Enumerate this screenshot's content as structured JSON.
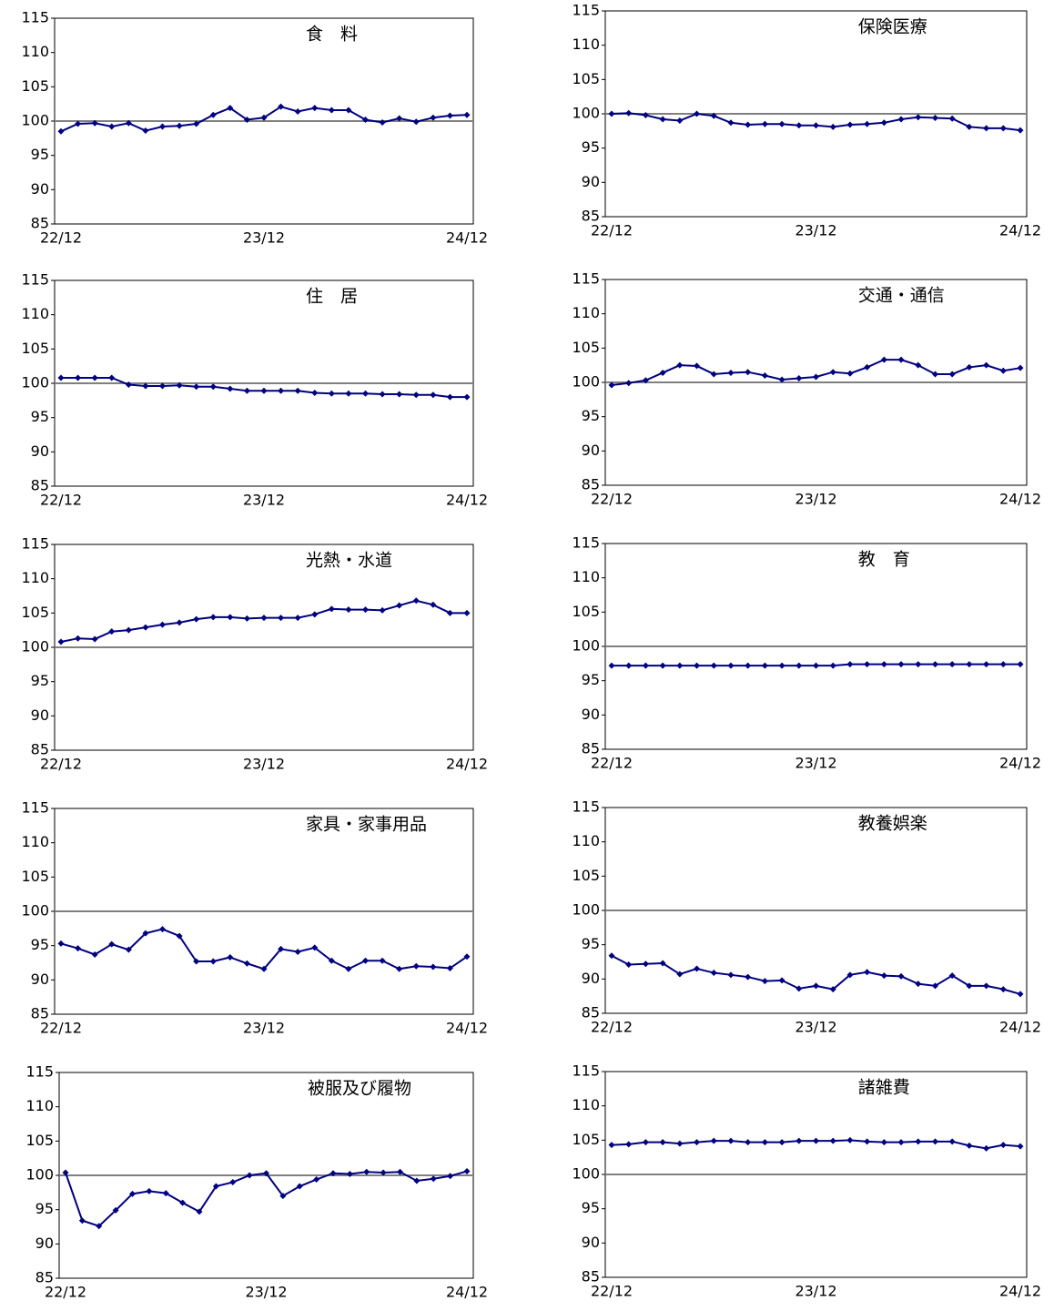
{
  "chart_data": [
    {
      "type": "line",
      "title": "食　料",
      "categories": [
        "22/12",
        null,
        null,
        null,
        null,
        null,
        null,
        null,
        null,
        null,
        null,
        null,
        "23/12",
        null,
        null,
        null,
        null,
        null,
        null,
        null,
        null,
        null,
        null,
        null,
        "24/12"
      ],
      "values": [
        98.5,
        99.6,
        99.7,
        99.2,
        99.7,
        98.6,
        99.2,
        99.3,
        99.6,
        100.9,
        101.9,
        100.2,
        100.5,
        102.1,
        101.4,
        101.9,
        101.6,
        101.6,
        100.2,
        99.8,
        100.4,
        99.9,
        100.5,
        100.8,
        100.9
      ],
      "color": "#000080",
      "ylim": [
        85,
        115
      ],
      "yticks": [
        85,
        90,
        95,
        100,
        105,
        110,
        115
      ],
      "hline": 100,
      "hline_color": "#808080"
    },
    {
      "type": "line",
      "title": "保険医療",
      "categories": [
        "22/12",
        null,
        null,
        null,
        null,
        null,
        null,
        null,
        null,
        null,
        null,
        null,
        "23/12",
        null,
        null,
        null,
        null,
        null,
        null,
        null,
        null,
        null,
        null,
        null,
        "24/12"
      ],
      "values": [
        100.0,
        100.1,
        99.8,
        99.2,
        99.0,
        100.0,
        99.7,
        98.7,
        98.4,
        98.5,
        98.5,
        98.3,
        98.3,
        98.1,
        98.4,
        98.5,
        98.7,
        99.2,
        99.5,
        99.4,
        99.3,
        98.1,
        97.9,
        97.9,
        97.6
      ],
      "color": "#000080",
      "ylim": [
        85,
        115
      ],
      "yticks": [
        85,
        90,
        95,
        100,
        105,
        110,
        115
      ],
      "hline": 100,
      "hline_color": "#808080"
    },
    {
      "type": "line",
      "title": "住　居",
      "categories": [
        "22/12",
        null,
        null,
        null,
        null,
        null,
        null,
        null,
        null,
        null,
        null,
        null,
        "23/12",
        null,
        null,
        null,
        null,
        null,
        null,
        null,
        null,
        null,
        null,
        null,
        "24/12"
      ],
      "values": [
        100.8,
        100.8,
        100.8,
        100.8,
        99.8,
        99.6,
        99.6,
        99.7,
        99.5,
        99.5,
        99.2,
        98.9,
        98.9,
        98.9,
        98.9,
        98.6,
        98.5,
        98.5,
        98.5,
        98.4,
        98.4,
        98.3,
        98.3,
        98.0,
        98.0
      ],
      "color": "#000080",
      "ylim": [
        85,
        115
      ],
      "yticks": [
        85,
        90,
        95,
        100,
        105,
        110,
        115
      ],
      "hline": 100,
      "hline_color": "#808080"
    },
    {
      "type": "line",
      "title": "交通・通信",
      "categories": [
        "22/12",
        null,
        null,
        null,
        null,
        null,
        null,
        null,
        null,
        null,
        null,
        null,
        "23/12",
        null,
        null,
        null,
        null,
        null,
        null,
        null,
        null,
        null,
        null,
        null,
        "24/12"
      ],
      "values": [
        99.6,
        99.9,
        100.3,
        101.4,
        102.5,
        102.4,
        101.2,
        101.4,
        101.5,
        101.0,
        100.4,
        100.6,
        100.8,
        101.5,
        101.3,
        102.2,
        103.3,
        103.3,
        102.5,
        101.2,
        101.2,
        102.2,
        102.5,
        101.7,
        102.1
      ],
      "color": "#000080",
      "ylim": [
        85,
        115
      ],
      "yticks": [
        85,
        90,
        95,
        100,
        105,
        110,
        115
      ],
      "hline": 100,
      "hline_color": "#808080"
    },
    {
      "type": "line",
      "title": "光熱・水道",
      "categories": [
        "22/12",
        null,
        null,
        null,
        null,
        null,
        null,
        null,
        null,
        null,
        null,
        null,
        "23/12",
        null,
        null,
        null,
        null,
        null,
        null,
        null,
        null,
        null,
        null,
        null,
        "24/12"
      ],
      "values": [
        100.8,
        101.3,
        101.2,
        102.3,
        102.5,
        102.9,
        103.3,
        103.6,
        104.1,
        104.4,
        104.4,
        104.2,
        104.3,
        104.3,
        104.3,
        104.8,
        105.6,
        105.5,
        105.5,
        105.4,
        106.1,
        106.8,
        106.2,
        105.0,
        105.0
      ],
      "color": "#000080",
      "ylim": [
        85,
        115
      ],
      "yticks": [
        85,
        90,
        95,
        100,
        105,
        110,
        115
      ],
      "hline": 100,
      "hline_color": "#808080"
    },
    {
      "type": "line",
      "title": "教　育",
      "categories": [
        "22/12",
        null,
        null,
        null,
        null,
        null,
        null,
        null,
        null,
        null,
        null,
        null,
        "23/12",
        null,
        null,
        null,
        null,
        null,
        null,
        null,
        null,
        null,
        null,
        null,
        "24/12"
      ],
      "values": [
        97.2,
        97.2,
        97.2,
        97.2,
        97.2,
        97.2,
        97.2,
        97.2,
        97.2,
        97.2,
        97.2,
        97.2,
        97.2,
        97.2,
        97.4,
        97.4,
        97.4,
        97.4,
        97.4,
        97.4,
        97.4,
        97.4,
        97.4,
        97.4,
        97.4
      ],
      "color": "#000080",
      "ylim": [
        85,
        115
      ],
      "yticks": [
        85,
        90,
        95,
        100,
        105,
        110,
        115
      ],
      "hline": 100,
      "hline_color": "#808080"
    },
    {
      "type": "line",
      "title": "家具・家事用品",
      "categories": [
        "22/12",
        null,
        null,
        null,
        null,
        null,
        null,
        null,
        null,
        null,
        null,
        null,
        "23/12",
        null,
        null,
        null,
        null,
        null,
        null,
        null,
        null,
        null,
        null,
        null,
        "24/12"
      ],
      "values": [
        95.3,
        94.6,
        93.7,
        95.2,
        94.4,
        96.8,
        97.4,
        96.4,
        92.7,
        92.7,
        93.3,
        92.4,
        91.6,
        94.5,
        94.1,
        94.7,
        92.8,
        91.6,
        92.8,
        92.8,
        91.6,
        92.0,
        91.9,
        91.7,
        93.4
      ],
      "color": "#000080",
      "ylim": [
        85,
        115
      ],
      "yticks": [
        85,
        90,
        95,
        100,
        105,
        110,
        115
      ],
      "hline": 100,
      "hline_color": "#808080"
    },
    {
      "type": "line",
      "title": "教養娯楽",
      "categories": [
        "22/12",
        null,
        null,
        null,
        null,
        null,
        null,
        null,
        null,
        null,
        null,
        null,
        "23/12",
        null,
        null,
        null,
        null,
        null,
        null,
        null,
        null,
        null,
        null,
        null,
        "24/12"
      ],
      "values": [
        93.4,
        92.1,
        92.2,
        92.3,
        90.7,
        91.5,
        90.9,
        90.6,
        90.3,
        89.7,
        89.8,
        88.6,
        89.0,
        88.5,
        90.6,
        91.0,
        90.5,
        90.4,
        89.3,
        89.0,
        90.5,
        89.0,
        89.0,
        88.5,
        87.8
      ],
      "color": "#000080",
      "ylim": [
        85,
        115
      ],
      "yticks": [
        85,
        90,
        95,
        100,
        105,
        110,
        115
      ],
      "hline": 100,
      "hline_color": "#808080"
    },
    {
      "type": "line",
      "title": "被服及び履物",
      "categories": [
        "22/12",
        null,
        null,
        null,
        null,
        null,
        null,
        null,
        null,
        null,
        null,
        null,
        "23/12",
        null,
        null,
        null,
        null,
        null,
        null,
        null,
        null,
        null,
        null,
        null,
        "24/12"
      ],
      "values": [
        100.4,
        93.4,
        92.6,
        94.9,
        97.3,
        97.7,
        97.4,
        96.0,
        94.7,
        98.4,
        99.0,
        100.0,
        100.3,
        97.0,
        98.4,
        99.4,
        100.3,
        100.2,
        100.5,
        100.4,
        100.5,
        99.2,
        99.5,
        99.9,
        100.6
      ],
      "color": "#000080",
      "ylim": [
        85,
        115
      ],
      "yticks": [
        85,
        90,
        95,
        100,
        105,
        110,
        115
      ],
      "hline": 100,
      "hline_color": "#808080"
    },
    {
      "type": "line",
      "title": "諸雑費",
      "categories": [
        "22/12",
        null,
        null,
        null,
        null,
        null,
        null,
        null,
        null,
        null,
        null,
        null,
        "23/12",
        null,
        null,
        null,
        null,
        null,
        null,
        null,
        null,
        null,
        null,
        null,
        "24/12"
      ],
      "values": [
        104.3,
        104.4,
        104.7,
        104.7,
        104.5,
        104.7,
        104.9,
        104.9,
        104.7,
        104.7,
        104.7,
        104.9,
        104.9,
        104.9,
        105.0,
        104.8,
        104.7,
        104.7,
        104.8,
        104.8,
        104.8,
        104.2,
        103.8,
        104.3,
        104.1
      ],
      "color": "#000080",
      "ylim": [
        85,
        115
      ],
      "yticks": [
        85,
        90,
        95,
        100,
        105,
        110,
        115
      ],
      "hline": 100,
      "hline_color": "#808080"
    }
  ]
}
